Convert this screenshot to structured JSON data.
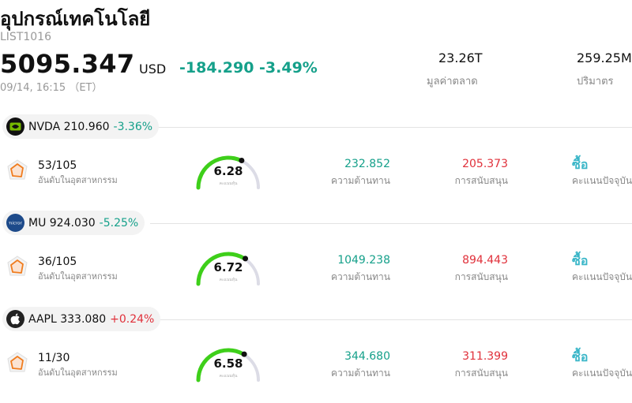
{
  "header": {
    "title": "อุปกรณ์เทคโนโลยี",
    "code": "LIST1016",
    "price": "5095.347",
    "currency": "USD",
    "change": "-184.290 -3.49%",
    "datetime": "09/14, 16:15 （ET）",
    "market_cap": "23.26T",
    "market_cap_label": "มูลค่าตลาด",
    "volume": "259.25M",
    "volume_label": "ปริมาตร"
  },
  "stocks": [
    {
      "ticker_price": "NVDA 210.960",
      "change": "-3.36%",
      "direction": "down",
      "logo_icon": "nvidia-logo-icon",
      "logo_bg": "#111111",
      "rank": "53/105",
      "rank_label": "อันดับในอุตสาหกรรม",
      "score": "6.28",
      "score_fraction": 0.628,
      "score_label": "คะแนนหุ้น",
      "resistance": "232.852",
      "resistance_label": "ความต้านทาน",
      "support": "205.373",
      "support_label": "การสนับสนุน",
      "rating": "ซื้อ",
      "rating_label": "คะแนนปัจจุบัน"
    },
    {
      "ticker_price": "MU 924.030",
      "change": "-5.25%",
      "direction": "down",
      "logo_icon": "micron-logo-icon",
      "logo_bg": "#1d4a8a",
      "rank": "36/105",
      "rank_label": "อันดับในอุตสาหกรรม",
      "score": "6.72",
      "score_fraction": 0.672,
      "score_label": "คะแนนหุ้น",
      "resistance": "1049.238",
      "resistance_label": "ความต้านทาน",
      "support": "894.443",
      "support_label": "การสนับสนุน",
      "rating": "ซื้อ",
      "rating_label": "คะแนนปัจจุบัน"
    },
    {
      "ticker_price": "AAPL 333.080",
      "change": "+0.24%",
      "direction": "up",
      "logo_icon": "apple-logo-icon",
      "logo_bg": "#222222",
      "rank": "11/30",
      "rank_label": "อันดับในอุตสาหกรรม",
      "score": "6.58",
      "score_fraction": 0.658,
      "score_label": "คะแนนหุ้น",
      "resistance": "344.680",
      "resistance_label": "ความต้านทาน",
      "support": "311.399",
      "support_label": "การสนับสนุน",
      "rating": "ซื้อ",
      "rating_label": "คะแนนปัจจุบัน"
    }
  ],
  "colors": {
    "down": "#15a08a",
    "up": "#e0303a",
    "gauge_fill": "#3ecf1a",
    "gauge_track": "#dcdce6",
    "rating": "#3ab6c8"
  }
}
